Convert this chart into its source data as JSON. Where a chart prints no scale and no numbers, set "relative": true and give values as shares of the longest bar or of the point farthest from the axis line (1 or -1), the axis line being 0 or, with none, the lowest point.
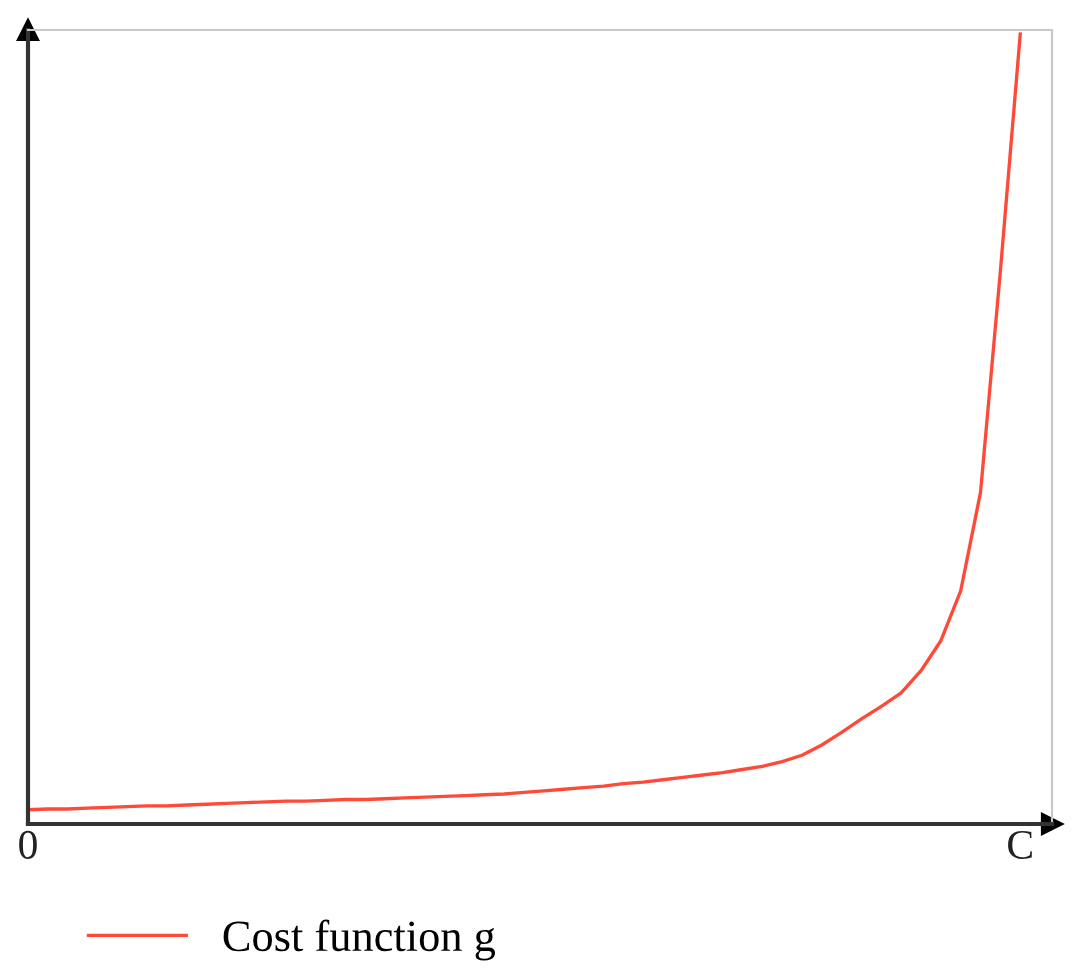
{
  "chart_data": {
    "type": "line",
    "relative": true,
    "categories": [
      "0",
      null,
      null,
      null,
      null,
      null,
      null,
      null,
      null,
      null,
      null,
      null,
      null,
      null,
      null,
      null,
      null,
      null,
      null,
      null,
      null,
      null,
      null,
      null,
      null,
      null,
      null,
      null,
      null,
      null,
      null,
      null,
      null,
      null,
      null,
      null,
      null,
      null,
      null,
      null,
      null,
      null,
      null,
      null,
      null,
      null,
      null,
      null,
      null,
      null,
      "C"
    ],
    "series": [
      {
        "name": "Cost function g",
        "color": "#ff4a3a",
        "values": [
          0.018,
          0.019,
          0.019,
          0.02,
          0.021,
          0.022,
          0.023,
          0.023,
          0.024,
          0.025,
          0.026,
          0.027,
          0.028,
          0.029,
          0.029,
          0.03,
          0.031,
          0.031,
          0.032,
          0.033,
          0.034,
          0.035,
          0.036,
          0.037,
          0.038,
          0.04,
          0.042,
          0.044,
          0.046,
          0.048,
          0.051,
          0.053,
          0.056,
          0.059,
          0.062,
          0.065,
          0.069,
          0.073,
          0.079,
          0.087,
          0.1,
          0.116,
          0.133,
          0.149,
          0.166,
          0.194,
          0.232,
          0.295,
          0.42,
          0.7,
          1.0
        ]
      }
    ],
    "legend": "bottom left",
    "grid": false,
    "marker": "none",
    "line_style": "solid"
  }
}
